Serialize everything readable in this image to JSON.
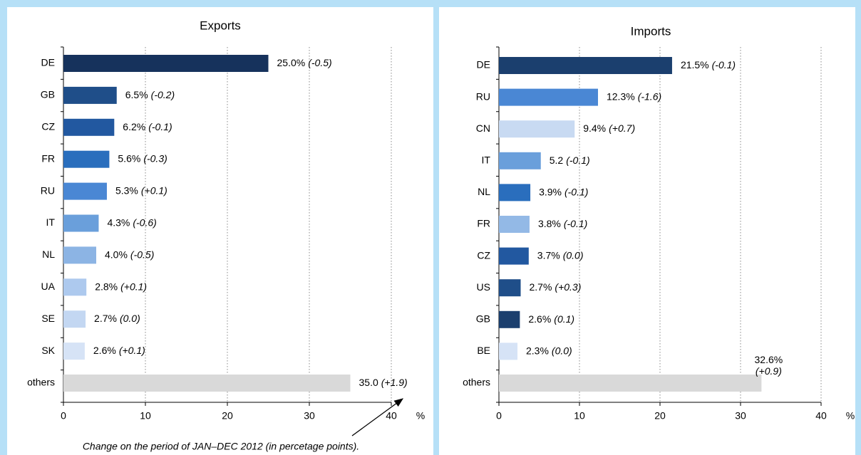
{
  "chart_data": [
    {
      "type": "bar",
      "orientation": "horizontal",
      "title": "Exports",
      "categories": [
        "DE",
        "GB",
        "CZ",
        "FR",
        "RU",
        "IT",
        "NL",
        "UA",
        "SE",
        "SK",
        "others"
      ],
      "values": [
        25.0,
        6.5,
        6.2,
        5.6,
        5.3,
        4.3,
        4.0,
        2.8,
        2.7,
        2.6,
        35.0
      ],
      "value_labels": [
        "25.0%",
        "6.5%",
        "6.2%",
        "5.6%",
        "5.3%",
        "4.3%",
        "4.0%",
        "2.8%",
        "2.7%",
        "2.6%",
        "35.0"
      ],
      "changes": [
        "(-0.5)",
        "(-0.2)",
        "(-0.1)",
        "(-0.3)",
        "(+0.1)",
        "(-0.6)",
        "(-0.5)",
        "(+0.1)",
        "(0.0)",
        "(+0.1)",
        "(+1.9)"
      ],
      "colors": [
        "#16325c",
        "#1f4e89",
        "#2258a0",
        "#2a6ebd",
        "#4a87d4",
        "#6a9fdb",
        "#8cb4e4",
        "#adc9ee",
        "#c3d7f2",
        "#d6e3f6",
        "#d9d9d9"
      ],
      "xlim": [
        0,
        40
      ],
      "xticks": [
        0,
        10,
        20,
        30,
        40
      ],
      "x_unit": "%",
      "grid": true,
      "annotation": "Change on the period of JAN–DEC 2012 (in percetage points)."
    },
    {
      "type": "bar",
      "orientation": "horizontal",
      "title": "Imports",
      "categories": [
        "DE",
        "RU",
        "CN",
        "IT",
        "NL",
        "FR",
        "CZ",
        "US",
        "GB",
        "BE",
        "others"
      ],
      "values": [
        21.5,
        12.3,
        9.4,
        5.2,
        3.9,
        3.8,
        3.7,
        2.7,
        2.6,
        2.3,
        32.6
      ],
      "value_labels": [
        "21.5%",
        "12.3%",
        "9.4%",
        "5.2",
        "3.9%",
        "3.8%",
        "3.7%",
        "2.7%",
        "2.6%",
        "2.3%",
        "32.6%"
      ],
      "changes": [
        "(-0.1)",
        "(-1.6)",
        "(+0.7)",
        "(-0.1)",
        "(-0.1)",
        "(-0.1)",
        "(0.0)",
        "(+0.3)",
        "(0.1)",
        "(0.0)",
        "(+0.9)"
      ],
      "colors": [
        "#1b3f6e",
        "#4a87d4",
        "#c8daf2",
        "#6a9fdb",
        "#2a6ebd",
        "#93b9e6",
        "#2258a0",
        "#1f4e89",
        "#1b3f6e",
        "#d6e3f6",
        "#d9d9d9"
      ],
      "xlim": [
        0,
        40
      ],
      "xticks": [
        0,
        10,
        20,
        30,
        40
      ],
      "x_unit": "%",
      "grid": true
    }
  ]
}
